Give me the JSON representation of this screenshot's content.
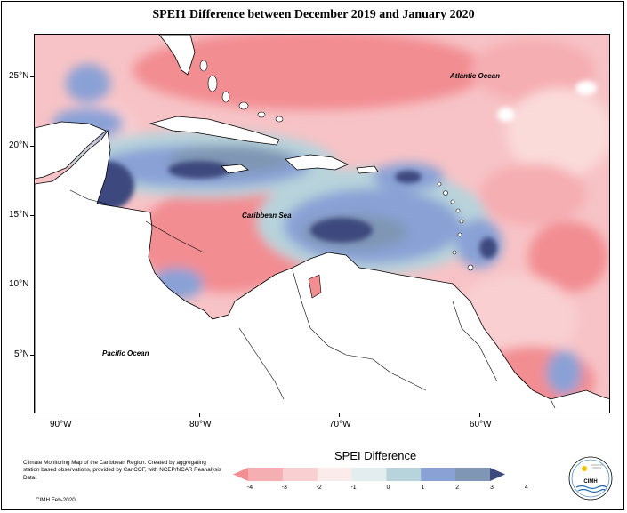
{
  "title": "SPEI1 Difference between December 2019 and January 2020",
  "y_axis_labels": [
    "25°N",
    "20°N",
    "15°N",
    "10°N",
    "5°N"
  ],
  "x_axis_labels": [
    "90°W",
    "80°W",
    "70°W",
    "60°W"
  ],
  "ocean_labels": {
    "atlantic": "Atlantic Ocean",
    "caribbean": "Caribbean Sea",
    "pacific": "Pacific Ocean"
  },
  "legend": {
    "title": "SPEI Difference",
    "ticks": [
      "-4",
      "-3",
      "-2",
      "-1",
      "0",
      "1",
      "2",
      "3",
      "4"
    ],
    "colors": [
      "#f28d92",
      "#f5aeb2",
      "#f9cfd1",
      "#fcebeb",
      "#e3edf0",
      "#b7d3db",
      "#8aa1d6",
      "#7f96b4",
      "#3e4a7e"
    ]
  },
  "footer": {
    "description": "Climate Monitoring Map of the Caribbean Region. Created by aggregating station based observations, provided by CariCOF, with NCEP/NCAR Reanalysis Data.",
    "credit": "CIMH Feb-2020"
  },
  "logo_text": "CIMH"
}
